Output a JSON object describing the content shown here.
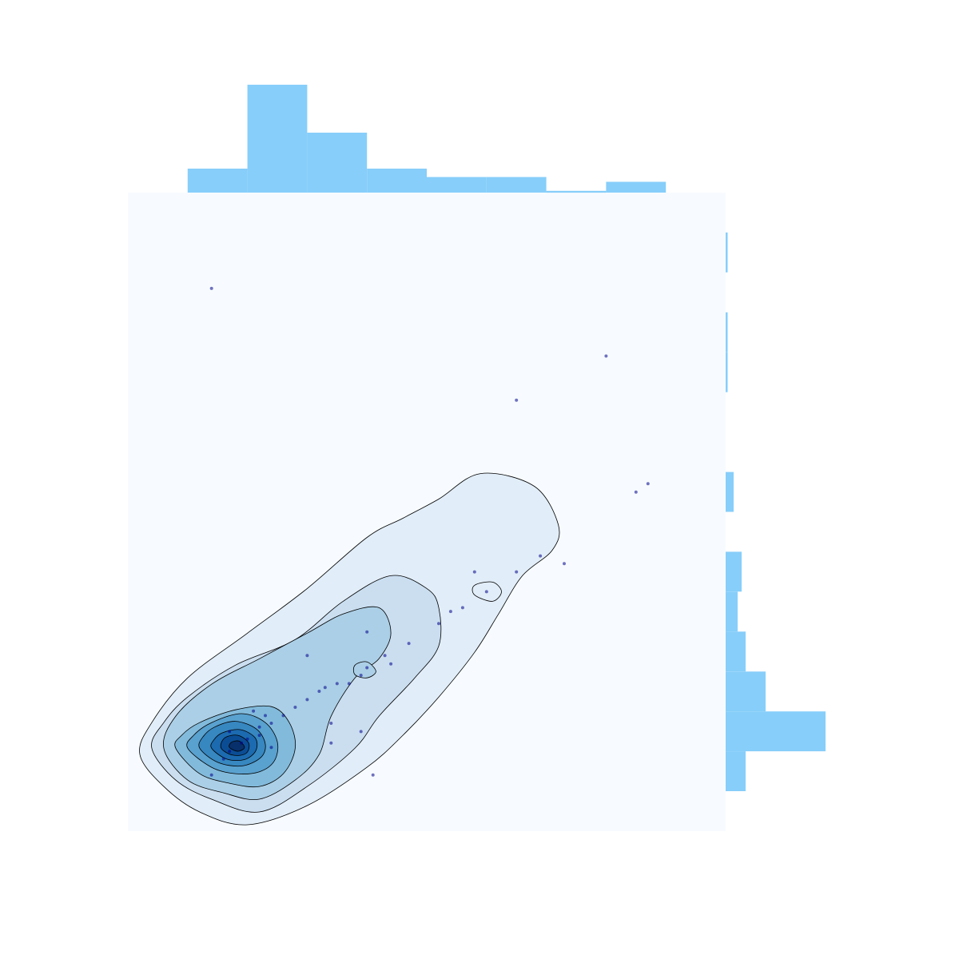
{
  "chart_data": {
    "type": "scatter",
    "variant": "joint-kde-with-marginal-histograms",
    "title": "",
    "xlabel": "",
    "ylabel": "",
    "axes_visible": false,
    "grid": false,
    "legend": "none",
    "xlim": [
      0,
      100
    ],
    "ylim": [
      0,
      100
    ],
    "points": [
      {
        "x": 14,
        "y": 85
      },
      {
        "x": 80,
        "y": 74.4
      },
      {
        "x": 65,
        "y": 67.5
      },
      {
        "x": 87,
        "y": 54.4
      },
      {
        "x": 85,
        "y": 53.1
      },
      {
        "x": 69,
        "y": 43.1
      },
      {
        "x": 73,
        "y": 41.9
      },
      {
        "x": 65,
        "y": 40.6
      },
      {
        "x": 58,
        "y": 40.6
      },
      {
        "x": 60,
        "y": 37.5
      },
      {
        "x": 56,
        "y": 35
      },
      {
        "x": 54,
        "y": 34.4
      },
      {
        "x": 52,
        "y": 32.5
      },
      {
        "x": 47,
        "y": 29.4
      },
      {
        "x": 43,
        "y": 27.5
      },
      {
        "x": 44,
        "y": 26.2
      },
      {
        "x": 40,
        "y": 25.6
      },
      {
        "x": 39,
        "y": 24.4
      },
      {
        "x": 37,
        "y": 23.1
      },
      {
        "x": 35,
        "y": 23.1
      },
      {
        "x": 33,
        "y": 22.5
      },
      {
        "x": 32,
        "y": 21.9
      },
      {
        "x": 30,
        "y": 20.6
      },
      {
        "x": 28,
        "y": 19.4
      },
      {
        "x": 26,
        "y": 18.1
      },
      {
        "x": 23,
        "y": 18.1
      },
      {
        "x": 24,
        "y": 16.9
      },
      {
        "x": 22,
        "y": 16.3
      },
      {
        "x": 22,
        "y": 15
      },
      {
        "x": 20,
        "y": 14.4
      },
      {
        "x": 19,
        "y": 13.8
      },
      {
        "x": 17,
        "y": 12.5
      },
      {
        "x": 16,
        "y": 11.3
      },
      {
        "x": 14,
        "y": 8.8
      },
      {
        "x": 24,
        "y": 13.1
      },
      {
        "x": 34,
        "y": 13.8
      },
      {
        "x": 39,
        "y": 15.6
      },
      {
        "x": 41,
        "y": 8.8
      },
      {
        "x": 34,
        "y": 16.9
      },
      {
        "x": 21,
        "y": 18.8
      },
      {
        "x": 17,
        "y": 15.6
      },
      {
        "x": 30,
        "y": 27.5
      },
      {
        "x": 40,
        "y": 31.2
      }
    ],
    "x_histogram": {
      "bin_edges": [
        0,
        10,
        20,
        30,
        40,
        50,
        60,
        70,
        80,
        90,
        100
      ],
      "heights": [
        0,
        4,
        18,
        10,
        4,
        2.6,
        2.6,
        0.3,
        1.8,
        0
      ]
    },
    "y_histogram": {
      "bin_edges": [
        0,
        6.25,
        12.5,
        18.75,
        25,
        31.25,
        37.5,
        43.75,
        50,
        56.25,
        62.5,
        68.75,
        75,
        81.25,
        87.5,
        93.75,
        100
      ],
      "heights": [
        0,
        5,
        25,
        10,
        5,
        3,
        4,
        0,
        2,
        0,
        0,
        0.5,
        0.5,
        0,
        0.5,
        0
      ]
    },
    "kde_levels": [
      {
        "level": 1,
        "contours": [
          [
            [
              2,
              12
            ],
            [
              6,
              7
            ],
            [
              12,
              3
            ],
            [
              20,
              1
            ],
            [
              30,
              4
            ],
            [
              40,
              10
            ],
            [
              46,
              15
            ],
            [
              52,
              21
            ],
            [
              58,
              28
            ],
            [
              62,
              34
            ],
            [
              66,
              40
            ],
            [
              71,
              44
            ],
            [
              72,
              48
            ],
            [
              68,
              54
            ],
            [
              59,
              56
            ],
            [
              52,
              52
            ],
            [
              46,
              49
            ],
            [
              40,
              46
            ],
            [
              30,
              38
            ],
            [
              20,
              31
            ],
            [
              10,
              24
            ],
            [
              4,
              17
            ]
          ],
          [
            [
              58,
              37
            ],
            [
              61,
              36
            ],
            [
              62.5,
              37.5
            ],
            [
              61,
              39
            ],
            [
              58,
              38.5
            ]
          ]
        ]
      },
      {
        "level": 2,
        "contours": [
          [
            [
              4,
              13
            ],
            [
              8,
              8
            ],
            [
              14,
              5
            ],
            [
              22,
              3
            ],
            [
              30,
              7
            ],
            [
              38,
              13
            ],
            [
              42,
              18
            ],
            [
              48,
              24
            ],
            [
              52,
              29
            ],
            [
              52,
              35
            ],
            [
              50,
              38
            ],
            [
              44,
              40
            ],
            [
              36,
              36
            ],
            [
              28,
              30
            ],
            [
              18,
              26
            ],
            [
              10,
              21
            ],
            [
              6,
              17
            ]
          ]
        ]
      },
      {
        "level": 3,
        "contours": [
          [
            [
              6,
              13
            ],
            [
              10,
              8
            ],
            [
              16,
              6
            ],
            [
              22,
              5
            ],
            [
              28,
              8
            ],
            [
              32,
              12
            ],
            [
              34,
              18
            ],
            [
              38,
              24
            ],
            [
              42,
              27
            ],
            [
              44,
              31
            ],
            [
              42,
              35
            ],
            [
              36,
              34
            ],
            [
              30,
              31
            ],
            [
              22,
              27
            ],
            [
              14,
              23
            ],
            [
              8,
              18
            ]
          ],
          [
            [
              38,
              24.5
            ],
            [
              40,
              24
            ],
            [
              41.5,
              25
            ],
            [
              40,
              26.5
            ],
            [
              38,
              26
            ]
          ]
        ]
      },
      {
        "level": 4,
        "contours": [
          [
            [
              8,
              13
            ],
            [
              12,
              9
            ],
            [
              17,
              7.5
            ],
            [
              22,
              7
            ],
            [
              26,
              9
            ],
            [
              28,
              13
            ],
            [
              27,
              17
            ],
            [
              24,
              19.5
            ],
            [
              18,
              19
            ],
            [
              12,
              17
            ],
            [
              9,
              15
            ]
          ]
        ]
      },
      {
        "level": 5,
        "contours": [
          [
            [
              10,
              13
            ],
            [
              14,
              10
            ],
            [
              18,
              9
            ],
            [
              22,
              9.3
            ],
            [
              24.5,
              11
            ],
            [
              25,
              14
            ],
            [
              23,
              17
            ],
            [
              19,
              18.4
            ],
            [
              14,
              17
            ],
            [
              11,
              15
            ]
          ]
        ]
      },
      {
        "level": 6,
        "contours": [
          [
            [
              12,
              13
            ],
            [
              15,
              10.8
            ],
            [
              19,
              10.2
            ],
            [
              22.2,
              11.5
            ],
            [
              23,
              13.6
            ],
            [
              21.5,
              16
            ],
            [
              18,
              17.2
            ],
            [
              14.5,
              16.3
            ],
            [
              12.6,
              14.8
            ]
          ]
        ]
      },
      {
        "level": 7,
        "contours": [
          [
            [
              14,
              13
            ],
            [
              16.5,
              11.3
            ],
            [
              19.5,
              11.2
            ],
            [
              21.4,
              12.6
            ],
            [
              21.3,
              14.6
            ],
            [
              18.8,
              15.9
            ],
            [
              15.8,
              15.4
            ],
            [
              14.4,
              14.3
            ]
          ]
        ]
      },
      {
        "level": 8,
        "contours": [
          [
            [
              15.6,
              13
            ],
            [
              17.6,
              11.9
            ],
            [
              19.8,
              12.2
            ],
            [
              20.2,
              13.8
            ],
            [
              18.4,
              15
            ],
            [
              16.2,
              14.6
            ]
          ]
        ]
      },
      {
        "level": 9,
        "contours": [
          [
            [
              17,
              13.1
            ],
            [
              18.4,
              12.5
            ],
            [
              19.5,
              13.1
            ],
            [
              18.6,
              14.1
            ],
            [
              17.3,
              13.9
            ]
          ]
        ]
      }
    ],
    "colors": {
      "background": "#f7fbff",
      "histogram": "#87cefa",
      "contour_line": "#000000",
      "points": "#00008b",
      "fills": [
        "#f7fbff",
        "#e1edf8",
        "#cadef0",
        "#abcfe6",
        "#82badb",
        "#59a1cf",
        "#3787c0",
        "#1c6aaf",
        "#0b4d94",
        "#08306b"
      ]
    }
  }
}
